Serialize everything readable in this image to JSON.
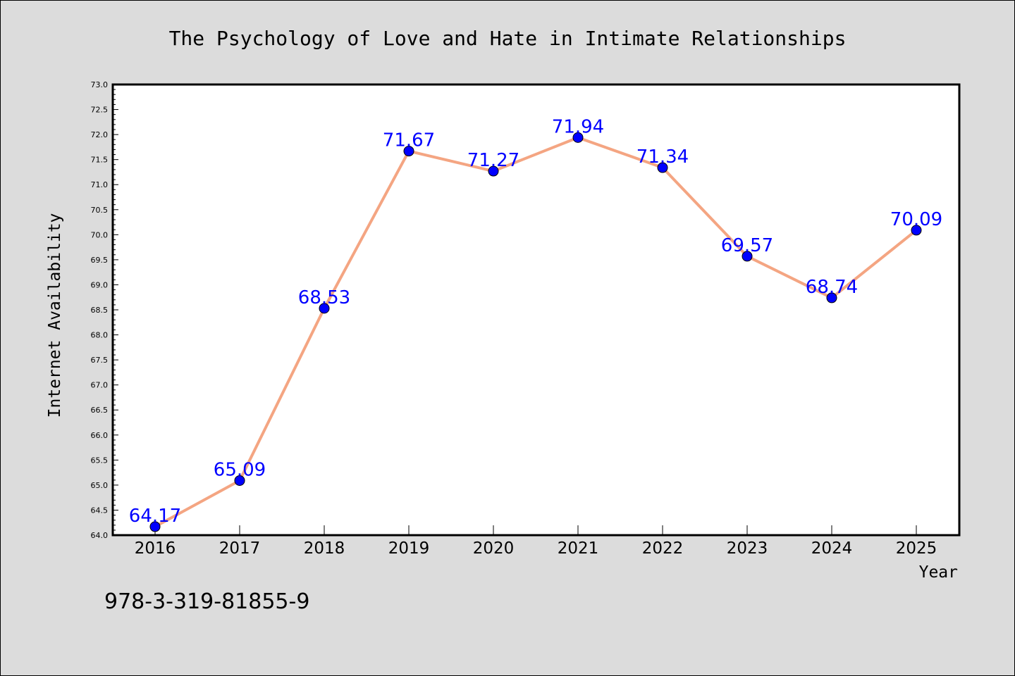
{
  "chart_data": {
    "type": "line",
    "title": "The Psychology of Love and Hate in Intimate Relationships",
    "xlabel": "Year",
    "ylabel": "Internet Availability",
    "categories": [
      "2016",
      "2017",
      "2018",
      "2019",
      "2020",
      "2021",
      "2022",
      "2023",
      "2024",
      "2025"
    ],
    "series": [
      {
        "values": [
          64.17,
          65.09,
          68.53,
          71.67,
          71.27,
          71.94,
          71.34,
          69.57,
          68.74,
          70.09
        ],
        "labels": [
          "64.17",
          "65.09",
          "68.53",
          "71.67",
          "71.27",
          "71.94",
          "71.34",
          "69.57",
          "68.74",
          "70.09"
        ]
      }
    ],
    "ylim": [
      64.0,
      73.0
    ],
    "yticks": [
      "64.0",
      "64.5",
      "65.0",
      "65.5",
      "66.0",
      "66.5",
      "67.0",
      "67.5",
      "68.0",
      "68.5",
      "69.0",
      "69.5",
      "70.0",
      "70.5",
      "71.0",
      "71.5",
      "72.0",
      "72.5",
      "73.0"
    ],
    "grid": false,
    "line_color": "#f4a582",
    "marker_color": "#0000ff",
    "label_color": "#0000ff",
    "background_color": "#dcdcdc",
    "plot_background_color": "#ffffff"
  },
  "footer": {
    "isbn": "978-3-319-81855-9"
  }
}
